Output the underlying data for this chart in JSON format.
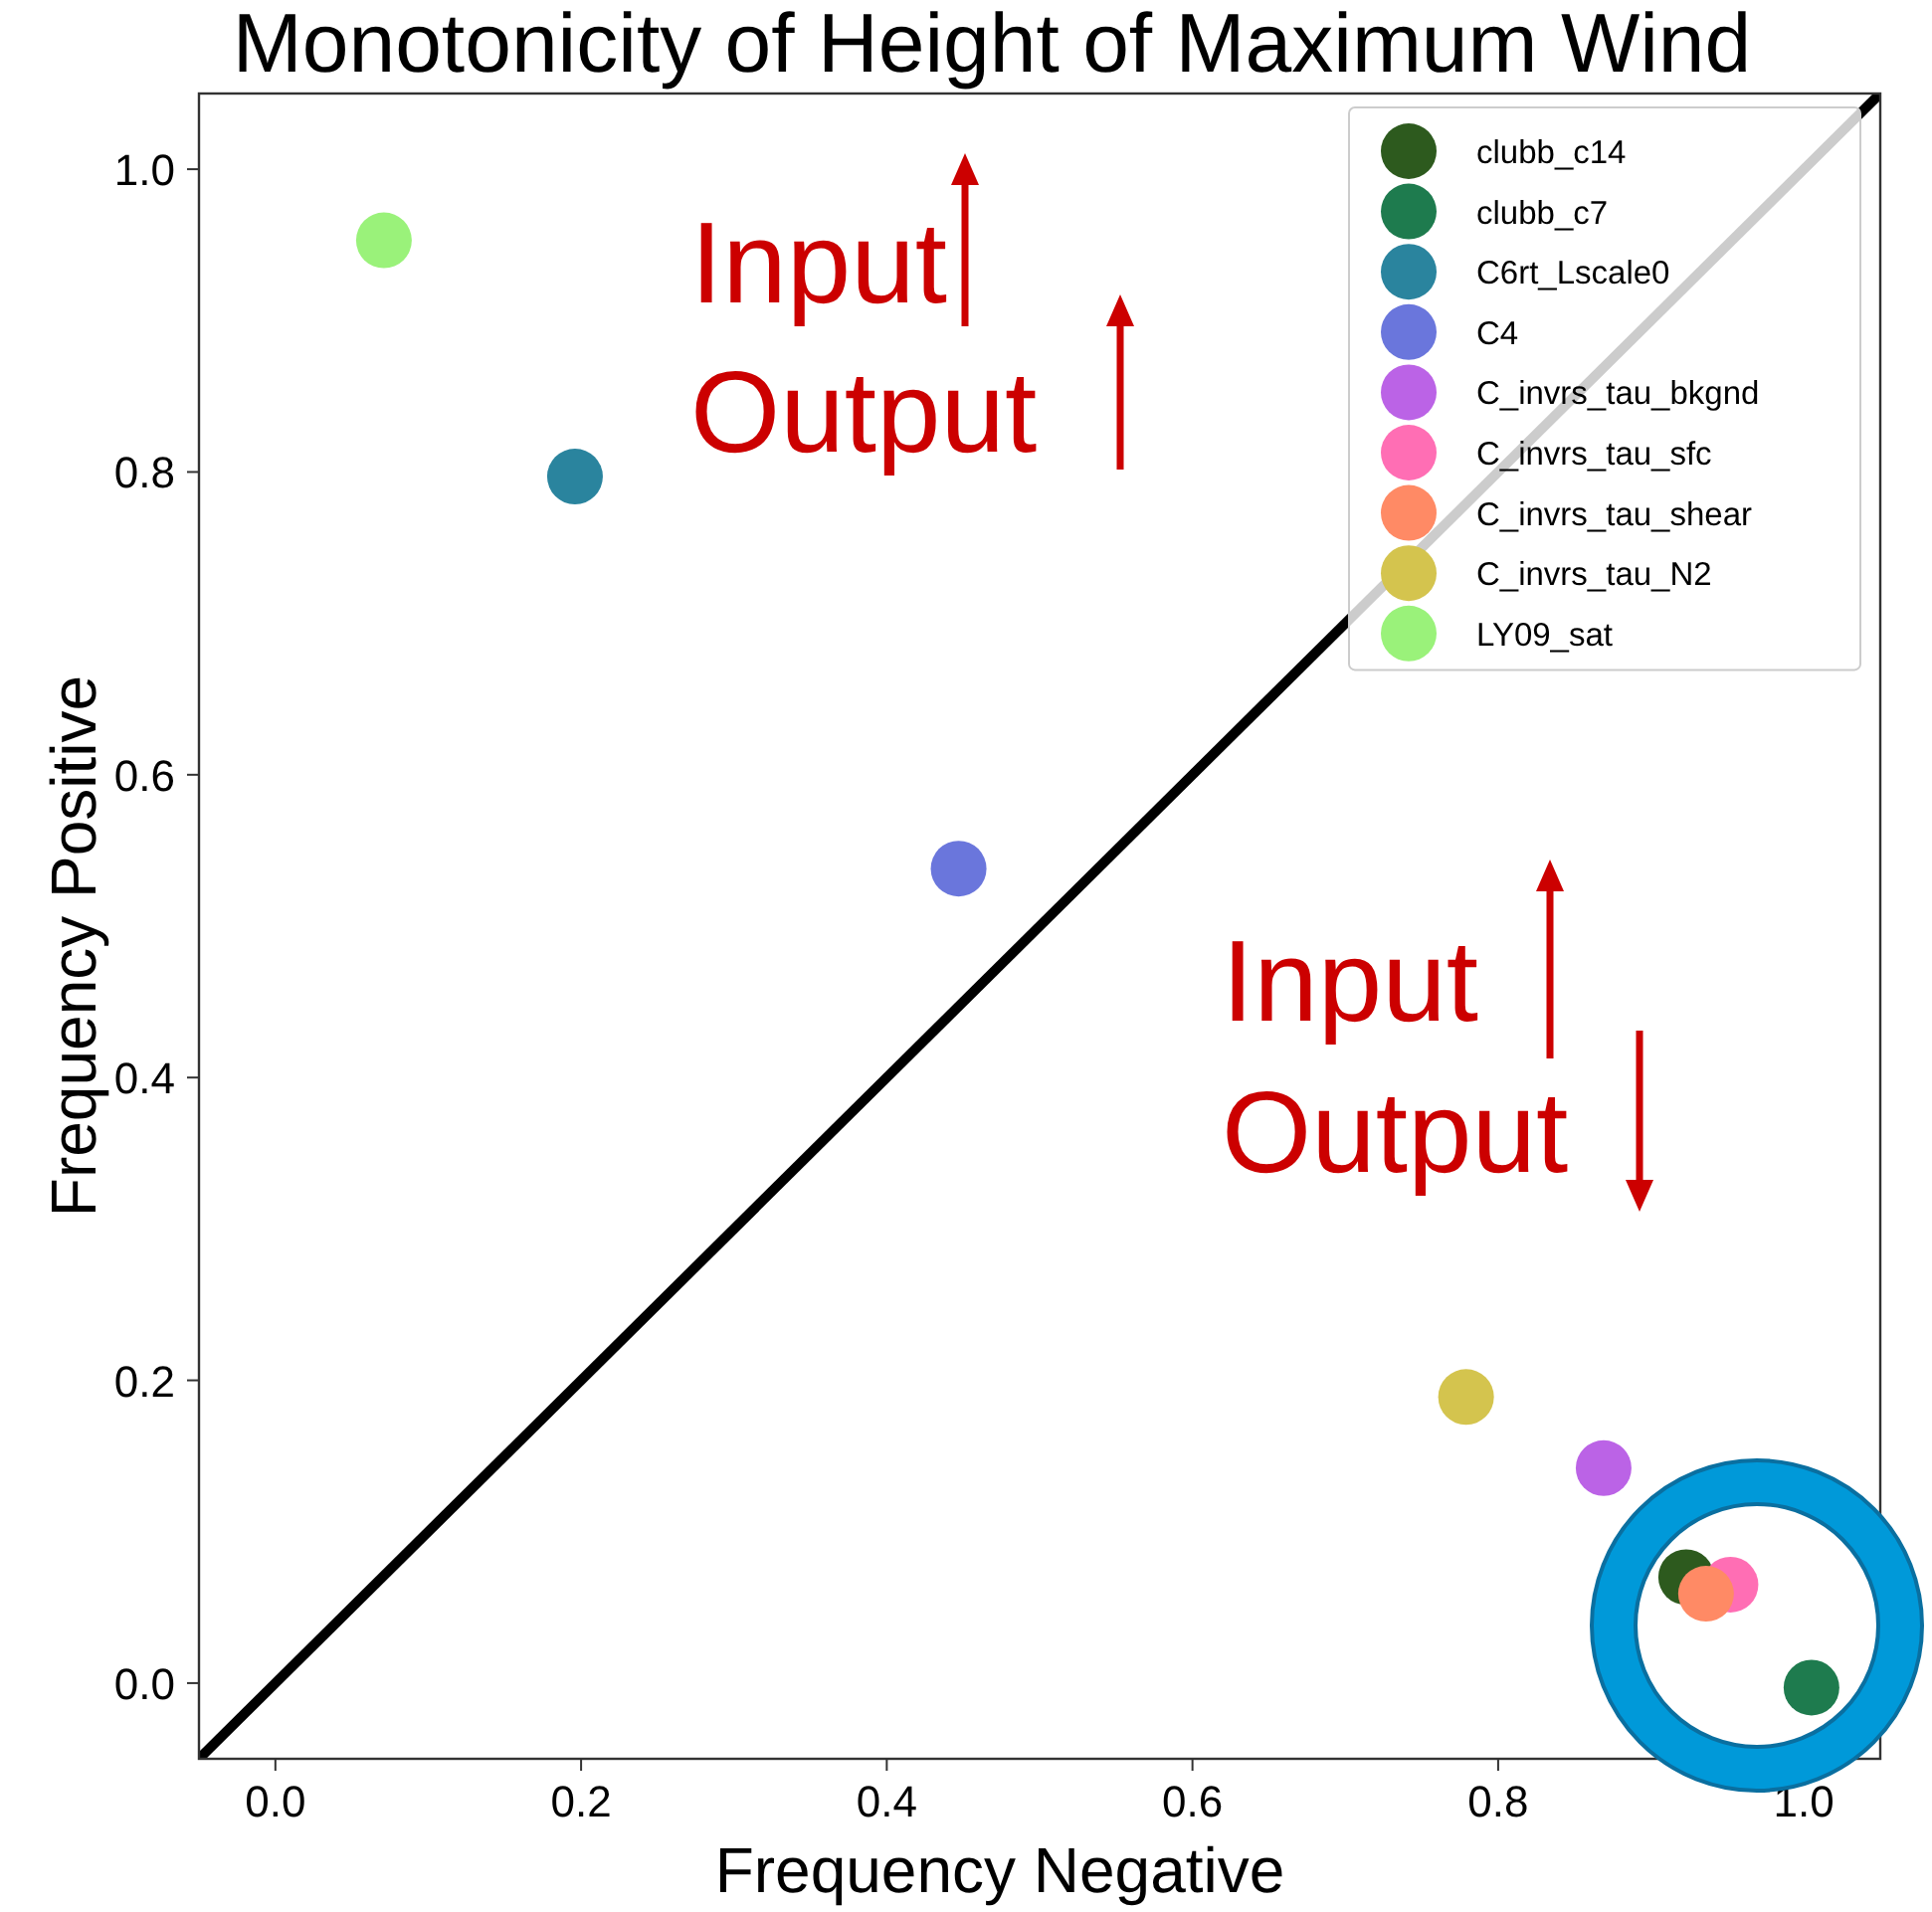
{
  "chart_data": {
    "type": "scatter",
    "title": "Monotonicity of Height of Maximum Wind",
    "xlabel": "Frequency Negative",
    "ylabel": "Frequency Positive",
    "xlim": [
      -0.05,
      1.05
    ],
    "ylim": [
      -0.05,
      1.05
    ],
    "xticks": [
      {
        "value": 0,
        "label": "0.0"
      },
      {
        "value": 0.2,
        "label": "0.2"
      },
      {
        "value": 0.4,
        "label": "0.4"
      },
      {
        "value": 0.6,
        "label": "0.6"
      },
      {
        "value": 0.8,
        "label": "0.8"
      },
      {
        "value": 1,
        "label": "1.0"
      }
    ],
    "yticks": [
      {
        "value": 0,
        "label": "0.0"
      },
      {
        "value": 0.2,
        "label": "0.2"
      },
      {
        "value": 0.4,
        "label": "0.4"
      },
      {
        "value": 0.6,
        "label": "0.6"
      },
      {
        "value": 0.8,
        "label": "0.8"
      },
      {
        "value": 1,
        "label": "1.0"
      }
    ],
    "grid": false,
    "legend": "top right",
    "marker": "circle",
    "annotations": [
      "Input",
      "Output",
      "Input",
      "Output"
    ],
    "series": [
      {
        "type": "line",
        "marker": "none",
        "color": "#000000",
        "x": [
          -0.05,
          1.05
        ],
        "values": [
          -0.05,
          1.05
        ]
      },
      {
        "name": "clubb_c14",
        "color": "#2d5a1e",
        "x": [
          0.923
        ],
        "values": [
          0.07
        ]
      },
      {
        "name": "clubb_c7",
        "color": "#1e7b4e",
        "x": [
          1.005
        ],
        "values": [
          -0.003
        ]
      },
      {
        "name": "C6rt_Lscale0",
        "color": "#2a849e",
        "x": [
          0.196
        ],
        "values": [
          0.797
        ]
      },
      {
        "name": "C4",
        "color": "#6a76dc",
        "x": [
          0.447
        ],
        "values": [
          0.538
        ]
      },
      {
        "name": "C_invrs_tau_bkgnd",
        "color": "#bb63e6",
        "x": [
          0.869
        ],
        "values": [
          0.142
        ]
      },
      {
        "name": "C_invrs_tau_sfc",
        "color": "#ff6eb4",
        "x": [
          0.952
        ],
        "values": [
          0.065
        ]
      },
      {
        "name": "C_invrs_tau_shear",
        "color": "#ff8a65",
        "x": [
          0.936
        ],
        "values": [
          0.059
        ]
      },
      {
        "name": "C_invrs_tau_N2",
        "color": "#d4c44e",
        "x": [
          0.779
        ],
        "values": [
          0.189
        ]
      },
      {
        "name": "LY09_sat",
        "color": "#9af27a",
        "x": [
          0.071
        ],
        "values": [
          0.953
        ]
      }
    ]
  }
}
